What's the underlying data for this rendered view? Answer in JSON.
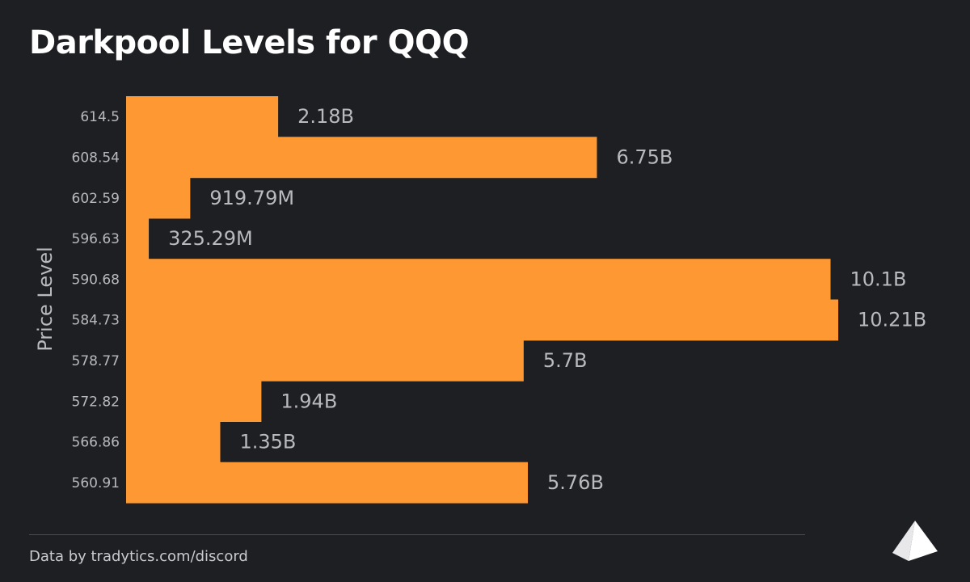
{
  "title": "Darkpool Levels for QQQ",
  "source": "Data by tradytics.com/discord",
  "colors": {
    "background": "#1e1f23",
    "bar": "#fd9832",
    "label": "#b9babd",
    "tick": "#b9babd"
  },
  "chart_data": {
    "type": "bar",
    "orientation": "horizontal",
    "title": "Darkpool Levels for QQQ",
    "ylabel": "Price Level",
    "xlabel": "",
    "categories": [
      "614.5",
      "608.54",
      "602.59",
      "596.63",
      "590.68",
      "584.73",
      "578.77",
      "572.82",
      "566.86",
      "560.91"
    ],
    "values": [
      2.18,
      6.75,
      0.91979,
      0.32529,
      10.1,
      10.21,
      5.7,
      1.94,
      1.35,
      5.76
    ],
    "value_unit": "B",
    "data_labels": [
      "2.18B",
      "6.75B",
      "919.79M",
      "325.29M",
      "10.1B",
      "10.21B",
      "5.7B",
      "1.94B",
      "1.35B",
      "5.76B"
    ],
    "xlim": [
      0,
      10.21
    ],
    "grid": false,
    "legend": "none"
  },
  "logo": {
    "icon": "tradytics-logo-icon"
  }
}
